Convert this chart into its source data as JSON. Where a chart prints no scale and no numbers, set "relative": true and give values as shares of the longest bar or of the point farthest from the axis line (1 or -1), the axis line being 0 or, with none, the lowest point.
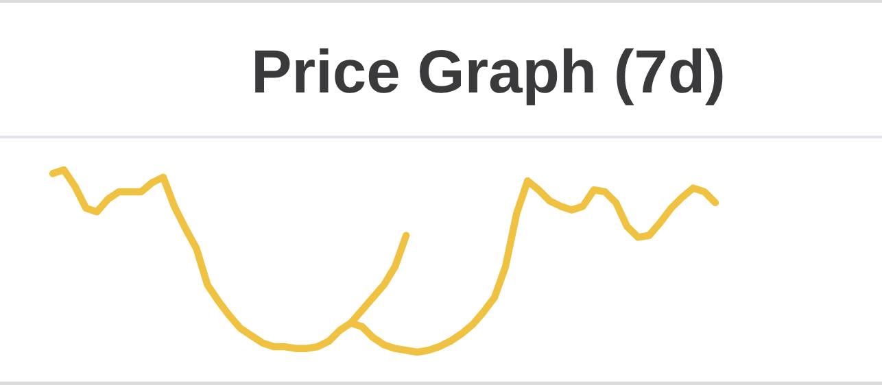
{
  "chart_data": {
    "type": "line",
    "title": "Price Graph (7d)",
    "relative": true,
    "categories": [
      null,
      null,
      null,
      null,
      null,
      null,
      null,
      null,
      null,
      null,
      null,
      null,
      null,
      null,
      null,
      null,
      null,
      null,
      null,
      null,
      null,
      null,
      null,
      null,
      null,
      null,
      null,
      null,
      null,
      null,
      null,
      null,
      null,
      null,
      null,
      null,
      null,
      null,
      null,
      null,
      null,
      null,
      null,
      null,
      null,
      null,
      null,
      null,
      null,
      null,
      null,
      null,
      null,
      null,
      null,
      null,
      null,
      null,
      null,
      null,
      null
    ],
    "series": [
      {
        "color": "#efc241",
        "values": [
          0.98,
          1,
          0.91,
          0.79,
          0.77,
          0.84,
          0.88,
          0.88,
          0.88,
          0.93,
          0.96,
          0.8,
          0.68,
          0.57,
          0.37,
          0.28,
          0.2,
          0.13,
          0.09,
          0.05,
          0.03,
          0.03,
          0.02,
          0.02,
          0.03,
          0.06,
          0.12,
          0.16,
          0.23,
          0.3,
          0.37,
          0.47,
          0.64,
          null,
          null,
          null,
          null,
          null,
          null,
          null,
          null,
          null,
          null,
          null,
          null,
          null,
          null,
          null,
          null,
          null,
          null,
          null,
          null,
          null,
          null,
          null,
          null,
          null,
          null,
          null,
          null
        ]
      },
      {
        "color": "#efc241",
        "values": [
          null,
          null,
          null,
          null,
          null,
          null,
          null,
          null,
          null,
          null,
          null,
          null,
          null,
          null,
          null,
          null,
          null,
          null,
          null,
          null,
          null,
          null,
          null,
          null,
          null,
          null,
          null,
          0.16,
          0.14,
          0.08,
          0.04,
          0.02,
          0.01,
          0,
          0.01,
          0.03,
          0.06,
          0.1,
          0.15,
          0.22,
          0.3,
          0.47,
          0.76,
          0.94,
          0.89,
          0.83,
          0.8,
          0.78,
          0.8,
          0.89,
          0.88,
          0.82,
          0.69,
          0.63,
          0.64,
          0.71,
          0.79,
          0.85,
          0.9,
          0.88,
          0.82
        ]
      }
    ]
  }
}
